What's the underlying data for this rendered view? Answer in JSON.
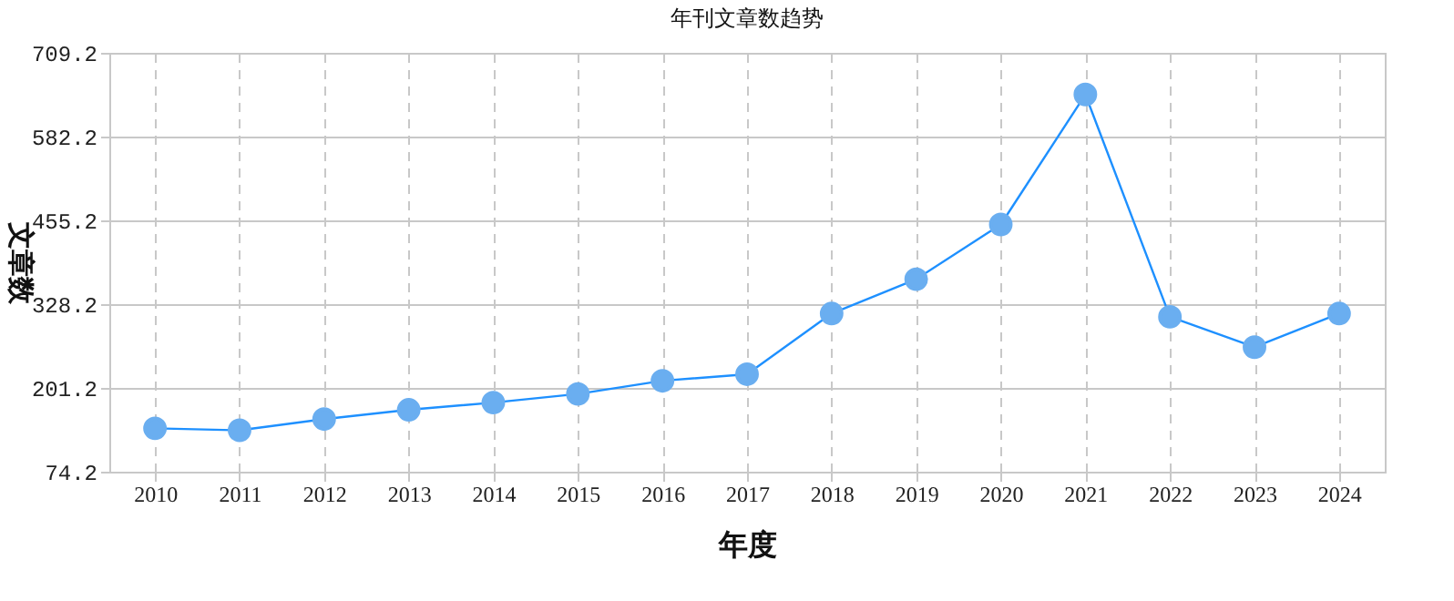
{
  "chart_data": {
    "type": "line",
    "title": "年刊文章数趋势",
    "xlabel": "年度",
    "ylabel": "文章数",
    "categories": [
      "2010",
      "2011",
      "2012",
      "2013",
      "2014",
      "2015",
      "2016",
      "2017",
      "2018",
      "2019",
      "2020",
      "2021",
      "2022",
      "2023",
      "2024"
    ],
    "series": [
      {
        "color": "#1e90ff",
        "values": [
          140,
          137,
          154,
          168,
          179,
          192,
          212,
          222,
          314,
          366,
          449,
          646,
          309,
          263,
          314
        ]
      }
    ],
    "ylim": [
      74.2,
      709.2
    ],
    "yticks": [
      74.2,
      201.2,
      328.2,
      455.2,
      582.2,
      709.2
    ],
    "grid": true,
    "marker": "circle",
    "line_style": "solid"
  }
}
